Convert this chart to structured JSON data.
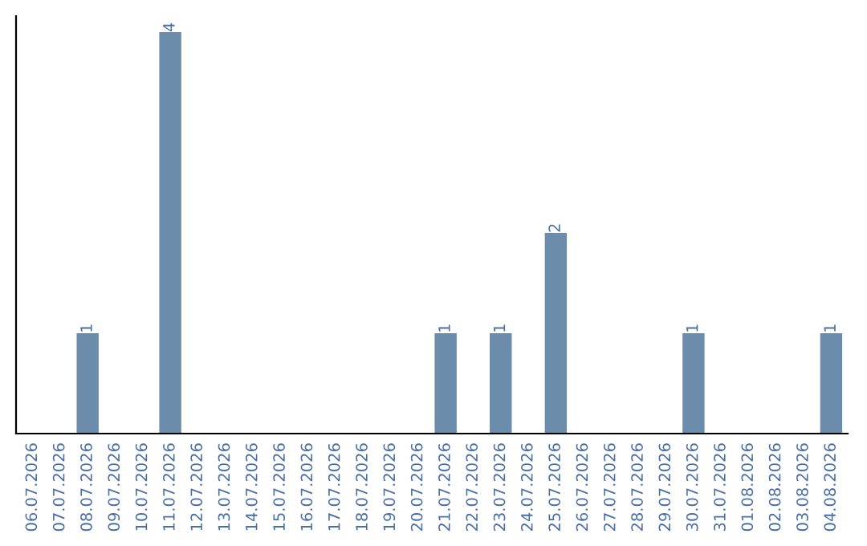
{
  "chart_data": {
    "type": "bar",
    "categories": [
      "06.07.2026",
      "07.07.2026",
      "08.07.2026",
      "09.07.2026",
      "10.07.2026",
      "11.07.2026",
      "12.07.2026",
      "13.07.2026",
      "14.07.2026",
      "15.07.2026",
      "16.07.2026",
      "17.07.2026",
      "18.07.2026",
      "19.07.2026",
      "20.07.2026",
      "21.07.2026",
      "22.07.2026",
      "23.07.2026",
      "24.07.2026",
      "25.07.2026",
      "26.07.2026",
      "27.07.2026",
      "28.07.2026",
      "29.07.2026",
      "30.07.2026",
      "31.07.2026",
      "01.08.2026",
      "02.08.2026",
      "03.08.2026",
      "04.08.2026"
    ],
    "values": [
      0,
      0,
      1,
      0,
      0,
      4,
      0,
      0,
      0,
      0,
      0,
      0,
      0,
      0,
      0,
      1,
      0,
      1,
      0,
      2,
      0,
      0,
      0,
      0,
      1,
      0,
      0,
      0,
      0,
      1
    ],
    "value_labels": [
      null,
      null,
      "1",
      null,
      null,
      "4",
      null,
      null,
      null,
      null,
      null,
      null,
      null,
      null,
      null,
      "1",
      null,
      "1",
      null,
      "2",
      null,
      null,
      null,
      null,
      "1",
      null,
      null,
      null,
      null,
      "1"
    ],
    "color": "#6b8cab",
    "grid": false,
    "tick_labels": "x"
  }
}
